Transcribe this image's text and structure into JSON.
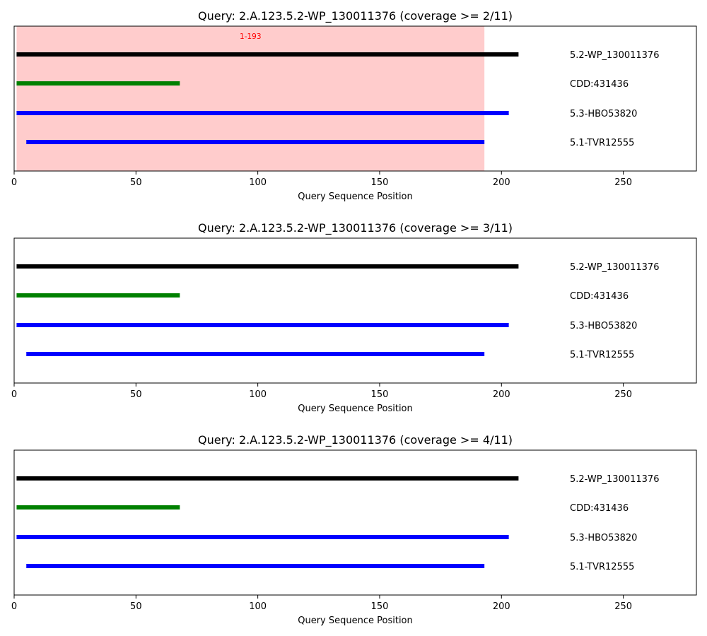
{
  "chart_data": [
    {
      "type": "bar",
      "title": "Query: 2.A.123.5.2-WP_130011376 (coverage >= 2/11)",
      "xlabel": "Query Sequence Position",
      "xlim": [
        0,
        280
      ],
      "xticks": [
        0,
        50,
        100,
        150,
        200,
        250
      ],
      "regions": [
        {
          "start": 1,
          "end": 193,
          "label": "1-193",
          "color": "#ff0000"
        }
      ],
      "tracks": [
        {
          "name": "5.2-WP_130011376",
          "start": 1,
          "end": 207,
          "color": "#000000"
        },
        {
          "name": "CDD:431436",
          "start": 1,
          "end": 68,
          "color": "#008000"
        },
        {
          "name": "5.3-HBO53820",
          "start": 1,
          "end": 203,
          "color": "#0000ff"
        },
        {
          "name": "5.1-TVR12555",
          "start": 5,
          "end": 193,
          "color": "#0000ff"
        }
      ]
    },
    {
      "type": "bar",
      "title": "Query: 2.A.123.5.2-WP_130011376 (coverage >= 3/11)",
      "xlabel": "Query Sequence Position",
      "xlim": [
        0,
        280
      ],
      "xticks": [
        0,
        50,
        100,
        150,
        200,
        250
      ],
      "regions": [],
      "tracks": [
        {
          "name": "5.2-WP_130011376",
          "start": 1,
          "end": 207,
          "color": "#000000"
        },
        {
          "name": "CDD:431436",
          "start": 1,
          "end": 68,
          "color": "#008000"
        },
        {
          "name": "5.3-HBO53820",
          "start": 1,
          "end": 203,
          "color": "#0000ff"
        },
        {
          "name": "5.1-TVR12555",
          "start": 5,
          "end": 193,
          "color": "#0000ff"
        }
      ]
    },
    {
      "type": "bar",
      "title": "Query: 2.A.123.5.2-WP_130011376 (coverage >= 4/11)",
      "xlabel": "Query Sequence Position",
      "xlim": [
        0,
        280
      ],
      "xticks": [
        0,
        50,
        100,
        150,
        200,
        250
      ],
      "regions": [],
      "tracks": [
        {
          "name": "5.2-WP_130011376",
          "start": 1,
          "end": 207,
          "color": "#000000"
        },
        {
          "name": "CDD:431436",
          "start": 1,
          "end": 68,
          "color": "#008000"
        },
        {
          "name": "5.3-HBO53820",
          "start": 1,
          "end": 203,
          "color": "#0000ff"
        },
        {
          "name": "5.1-TVR12555",
          "start": 5,
          "end": 193,
          "color": "#0000ff"
        }
      ]
    }
  ]
}
